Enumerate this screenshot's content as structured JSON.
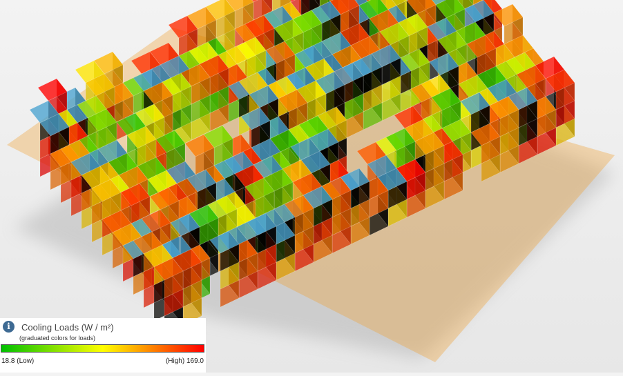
{
  "viewport": {
    "background_top": "#f3f3f3",
    "background_bottom": "#e7e7e7",
    "frame_color": "#4aa3d0"
  },
  "legend": {
    "icon": "info-icon",
    "title": "Cooling Loads (W / m²)",
    "subtitle": "(graduated colors for loads)",
    "low_label": "18.8 (Low)",
    "high_label": "(High) 169.0",
    "min_value": 18.8,
    "max_value": 169.0,
    "gradient_colors": [
      "#00c000",
      "#80e000",
      "#ffff00",
      "#ff8000",
      "#ff0000"
    ]
  }
}
